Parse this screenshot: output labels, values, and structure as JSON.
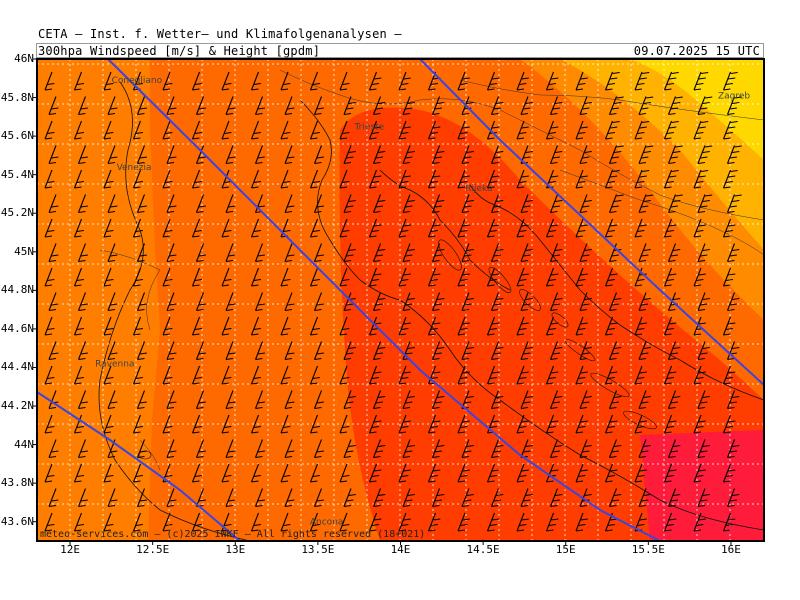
{
  "header": {
    "line1": "CETA – Inst. f. Wetter– und Klimafolgenanalysen –",
    "line2": "300hpa Windspeed [m/s] & Height [gpdm]",
    "datetime": "09.07.2025 15 UTC"
  },
  "map": {
    "lon_range": [
      11.8,
      16.2
    ],
    "lat_range": [
      43.5,
      46.0
    ],
    "lat_labels": [
      "46N",
      "45.8N",
      "45.6N",
      "45.4N",
      "45.2N",
      "45N",
      "44.8N",
      "44.6N",
      "44.4N",
      "44.2N",
      "44N",
      "43.8N",
      "43.6N"
    ],
    "lon_labels": [
      "12E",
      "12.5E",
      "13E",
      "13.5E",
      "14E",
      "14.5E",
      "15E",
      "15.5E",
      "16E"
    ],
    "cities": [
      {
        "name": "Conegliano",
        "lon": 12.3,
        "lat": 45.89
      },
      {
        "name": "Trieste",
        "lon": 13.77,
        "lat": 45.65
      },
      {
        "name": "Venezia",
        "lon": 12.33,
        "lat": 45.44
      },
      {
        "name": "Rijeka",
        "lon": 14.44,
        "lat": 45.33
      },
      {
        "name": "Zagreb",
        "lon": 15.97,
        "lat": 45.81
      },
      {
        "name": "Ravenna",
        "lon": 12.2,
        "lat": 44.42
      },
      {
        "name": "Ancona",
        "lon": 13.5,
        "lat": 43.6
      }
    ],
    "colors": {
      "orange": "#ff6a00",
      "red_orange": "#ff3d00",
      "red": "#ff1c1c",
      "light_orange": "#ff8c00",
      "amber": "#ffb200",
      "yellow": "#ffd800",
      "contour": "#3b45e0"
    },
    "footer": "meteo-services.com – (c)2025 IWKF – All rights reserved (18+021)"
  }
}
